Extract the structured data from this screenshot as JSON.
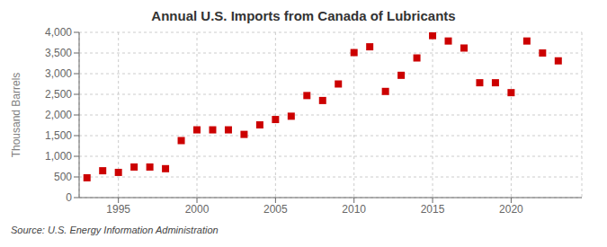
{
  "chart_data": {
    "type": "scatter",
    "title": "Annual U.S. Imports from Canada of Lubricants",
    "y_label": "Thousand Barrels",
    "source": "Source: U.S. Energy Information Administration",
    "x": [
      1993,
      1994,
      1995,
      1996,
      1997,
      1998,
      1999,
      2000,
      2001,
      2002,
      2003,
      2004,
      2005,
      2006,
      2007,
      2008,
      2009,
      2010,
      2011,
      2012,
      2013,
      2014,
      2015,
      2016,
      2017,
      2018,
      2019,
      2020,
      2021,
      2022,
      2023
    ],
    "values": [
      480,
      650,
      610,
      740,
      740,
      700,
      1380,
      1640,
      1640,
      1640,
      1530,
      1760,
      1890,
      1970,
      2470,
      2350,
      2750,
      3510,
      3650,
      2570,
      2960,
      3380,
      3920,
      3790,
      3620,
      2780,
      2780,
      2540,
      3790,
      3500,
      3310
    ],
    "color": "#cc0000",
    "marker": "square",
    "xlim": [
      1992.5,
      2024.5
    ],
    "xticks": [
      1995,
      2000,
      2005,
      2010,
      2015,
      2020
    ],
    "ylim": [
      0,
      4000
    ],
    "yticks": [
      0,
      500,
      {
        "value": 1000,
        "label": "1,000"
      },
      {
        "value": 1500,
        "label": "1,500"
      },
      {
        "value": 2000,
        "label": "2,000"
      },
      {
        "value": 2500,
        "label": "2,500"
      },
      {
        "value": 3000,
        "label": "3,000"
      },
      {
        "value": 3500,
        "label": "3,500"
      },
      {
        "value": 4000,
        "label": "4,000"
      }
    ],
    "grid": true
  }
}
